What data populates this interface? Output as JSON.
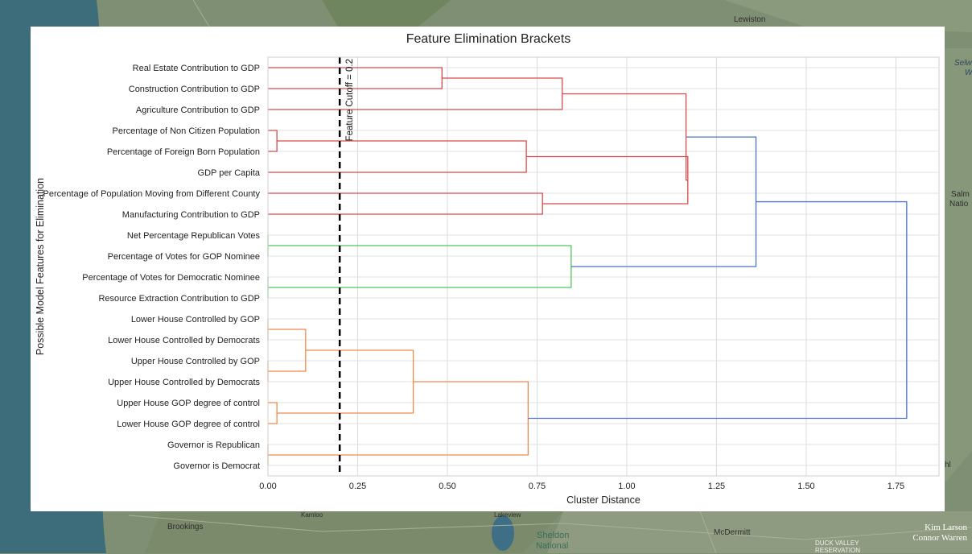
{
  "map": {
    "labels": [
      "Lewiston",
      "Selw",
      "W",
      "Salm",
      "Natio",
      "hl",
      "Brookings",
      "Sheldon",
      "National",
      "McDermitt",
      "DUCK VALLEY",
      "RESERVATION",
      "Lakeview",
      "Kamloo"
    ]
  },
  "credits": {
    "line1": "Kim Larson",
    "line2": "Connor Warren"
  },
  "chart_data": {
    "type": "dendrogram",
    "orientation": "horizontal",
    "title": "Feature Elimination Brackets",
    "xlabel": "Cluster Distance",
    "ylabel": "Possible Model Features for Elimination",
    "xlim": [
      0,
      1.87
    ],
    "xticks": [
      "0.00",
      "0.25",
      "0.50",
      "0.75",
      "1.00",
      "1.25",
      "1.50",
      "1.75"
    ],
    "grid": true,
    "leaves": [
      "Real Estate Contribution to GDP",
      "Construction Contribution to GDP",
      "Agriculture Contribution to GDP",
      "Percentage of Non Citizen Population",
      "Percentage of Foreign Born Population",
      "GDP per Capita",
      "Percentage of Population Moving from Different County",
      "Manufacturing Contribution to GDP",
      "Net Percentage Republican Votes",
      "Percentage of Votes for GOP Nominee",
      "Percentage of Votes for Democratic Nominee",
      "Resource Extraction Contribution to GDP",
      "Lower House Controlled by GOP",
      "Lower House Controlled by Democrats",
      "Upper House Controlled by GOP",
      "Upper House Controlled by Democrats",
      "Upper House GOP degree of control",
      "Lower House GOP degree of control",
      "Governor is Republican",
      "Governor is Democrat"
    ],
    "colors": {
      "red": "#d64a4b",
      "green": "#55c35a",
      "orange": "#ee8a4e",
      "blue": "#4a72cc"
    },
    "merges": [
      {
        "left": 0,
        "right": 1,
        "distance": 0.485,
        "color": "red"
      },
      {
        "left": 20,
        "right": 2,
        "distance": 0.82,
        "color": "red"
      },
      {
        "left": 3,
        "right": 4,
        "distance": 0.025,
        "color": "red"
      },
      {
        "left": 22,
        "right": 5,
        "distance": 0.72,
        "color": "red"
      },
      {
        "left": 6,
        "right": 7,
        "distance": 0.765,
        "color": "red"
      },
      {
        "left": 23,
        "right": 24,
        "distance": 1.17,
        "color": "red"
      },
      {
        "left": 21,
        "right": 25,
        "distance": 1.165,
        "color": "red"
      },
      {
        "left": 8,
        "right": 9,
        "distance": 0.0,
        "color": "green"
      },
      {
        "left": 10,
        "right": 11,
        "distance": 0.0,
        "color": "green"
      },
      {
        "left": 27,
        "right": 28,
        "distance": 0.845,
        "color": "green"
      },
      {
        "left": 26,
        "right": 29,
        "distance": 1.36,
        "color": "blue"
      },
      {
        "left": 12,
        "right": 13,
        "distance": 0.0,
        "color": "orange"
      },
      {
        "left": 14,
        "right": 15,
        "distance": 0.0,
        "color": "orange"
      },
      {
        "left": 31,
        "right": 32,
        "distance": 0.105,
        "color": "orange"
      },
      {
        "left": 16,
        "right": 17,
        "distance": 0.025,
        "color": "orange"
      },
      {
        "left": 33,
        "right": 34,
        "distance": 0.405,
        "color": "orange"
      },
      {
        "left": 18,
        "right": 19,
        "distance": 0.0,
        "color": "orange"
      },
      {
        "left": 35,
        "right": 36,
        "distance": 0.725,
        "color": "orange"
      },
      {
        "left": 30,
        "right": 37,
        "distance": 1.78,
        "color": "blue"
      }
    ],
    "cutoff": {
      "value": 0.2,
      "label": "Feature Cutoff = 0.2"
    }
  }
}
